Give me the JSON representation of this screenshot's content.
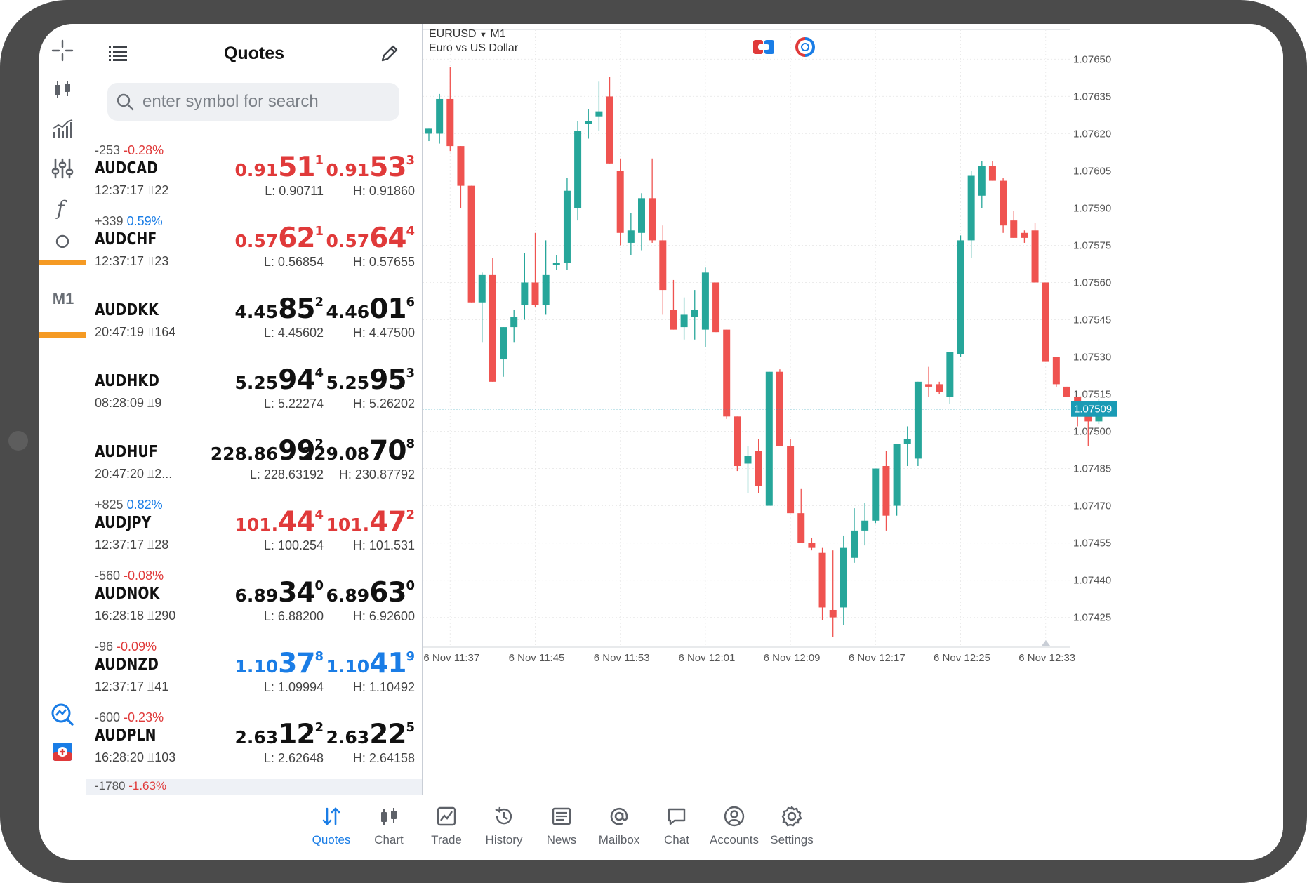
{
  "toolbar": {
    "items": [
      "crosshair-icon",
      "candles-icon",
      "indicators-icon",
      "settings-sliders-icon",
      "function-icon",
      "objects-icon"
    ],
    "timeframe": "M1",
    "bottom_items": [
      "trade-signals-icon",
      "one-click-trade-icon"
    ]
  },
  "quotes": {
    "title": "Quotes",
    "search_placeholder": "enter symbol for search",
    "rows": [
      {
        "change": "-253",
        "pct": "-0.28%",
        "pct_dir": "neg",
        "symbol": "AUDCAD",
        "time": "12:37:17",
        "spread": "22",
        "color": "red",
        "bid": {
          "small": "0.91",
          "big": "51",
          "sup": "1"
        },
        "ask": {
          "small": "0.91",
          "big": "53",
          "sup": "3"
        },
        "low": "L: 0.90711",
        "high": "H: 0.91860"
      },
      {
        "change": "+339",
        "pct": "0.59%",
        "pct_dir": "pos",
        "symbol": "AUDCHF",
        "time": "12:37:17",
        "spread": "23",
        "color": "red",
        "bid": {
          "small": "0.57",
          "big": "62",
          "sup": "1"
        },
        "ask": {
          "small": "0.57",
          "big": "64",
          "sup": "4"
        },
        "low": "L: 0.56854",
        "high": "H: 0.57655"
      },
      {
        "change": "",
        "pct": "",
        "pct_dir": "",
        "symbol": "AUDDKK",
        "time": "20:47:19",
        "spread": "164",
        "color": "black",
        "bid": {
          "small": "4.45",
          "big": "85",
          "sup": "2"
        },
        "ask": {
          "small": "4.46",
          "big": "01",
          "sup": "6"
        },
        "low": "L: 4.45602",
        "high": "H: 4.47500"
      },
      {
        "change": "",
        "pct": "",
        "pct_dir": "",
        "symbol": "AUDHKD",
        "time": "08:28:09",
        "spread": "9",
        "color": "black",
        "bid": {
          "small": "5.25",
          "big": "94",
          "sup": "4"
        },
        "ask": {
          "small": "5.25",
          "big": "95",
          "sup": "3"
        },
        "low": "L: 5.22274",
        "high": "H: 5.26202"
      },
      {
        "change": "",
        "pct": "",
        "pct_dir": "",
        "symbol": "AUDHUF",
        "time": "20:47:20",
        "spread": "2...",
        "color": "black",
        "bid": {
          "small": "228.86",
          "big": "99",
          "sup": "2"
        },
        "ask": {
          "small": "229.08",
          "big": "70",
          "sup": "8"
        },
        "low": "L: 228.63192",
        "high": "H: 230.87792"
      },
      {
        "change": "+825",
        "pct": "0.82%",
        "pct_dir": "pos",
        "symbol": "AUDJPY",
        "time": "12:37:17",
        "spread": "28",
        "color": "red",
        "bid": {
          "small": "101.",
          "big": "44",
          "sup": "4"
        },
        "ask": {
          "small": "101.",
          "big": "47",
          "sup": "2"
        },
        "low": "L: 100.254",
        "high": "H: 101.531"
      },
      {
        "change": "-560",
        "pct": "-0.08%",
        "pct_dir": "neg",
        "symbol": "AUDNOK",
        "time": "16:28:18",
        "spread": "290",
        "color": "black",
        "bid": {
          "small": "6.89",
          "big": "34",
          "sup": "0"
        },
        "ask": {
          "small": "6.89",
          "big": "63",
          "sup": "0"
        },
        "low": "L: 6.88200",
        "high": "H: 6.92600"
      },
      {
        "change": "-96",
        "pct": "-0.09%",
        "pct_dir": "neg",
        "symbol": "AUDNZD",
        "time": "12:37:17",
        "spread": "41",
        "color": "blue",
        "bid": {
          "small": "1.10",
          "big": "37",
          "sup": "8"
        },
        "ask": {
          "small": "1.10",
          "big": "41",
          "sup": "9"
        },
        "low": "L: 1.09994",
        "high": "H: 1.10492"
      },
      {
        "change": "-600",
        "pct": "-0.23%",
        "pct_dir": "neg",
        "symbol": "AUDPLN",
        "time": "16:28:20",
        "spread": "103",
        "color": "black",
        "bid": {
          "small": "2.63",
          "big": "12",
          "sup": "2"
        },
        "ask": {
          "small": "2.63",
          "big": "22",
          "sup": "5"
        },
        "low": "L: 2.62648",
        "high": "H: 2.64158"
      }
    ],
    "partial_row": {
      "change": "-1780",
      "pct": "-1.63%"
    }
  },
  "chart": {
    "symbol": "EURUSD",
    "timeframe": "M1",
    "description": "Euro vs US Dollar",
    "current_price": "1.07509",
    "colors": {
      "bull": "#26a69a",
      "bear": "#ef5350",
      "grid": "#ebebeb",
      "price_line": "#1a9bb5"
    }
  },
  "chart_data": {
    "type": "candlestick",
    "ylim": [
      1.07413,
      1.07662
    ],
    "y_ticks": [
      "1.07650",
      "1.07635",
      "1.07620",
      "1.07605",
      "1.07590",
      "1.07575",
      "1.07560",
      "1.07545",
      "1.07530",
      "1.07515",
      "1.07500",
      "1.07485",
      "1.07470",
      "1.07455",
      "1.07440",
      "1.07425"
    ],
    "x_ticks": [
      "6 Nov 11:37",
      "6 Nov 11:45",
      "6 Nov 11:53",
      "6 Nov 12:01",
      "6 Nov 12:09",
      "6 Nov 12:17",
      "6 Nov 12:25",
      "6 Nov 12:33"
    ],
    "candles": [
      [
        1.0762,
        1.07622,
        1.07617,
        1.07622
      ],
      [
        1.0762,
        1.07636,
        1.07616,
        1.07634
      ],
      [
        1.07634,
        1.07647,
        1.07613,
        1.07615
      ],
      [
        1.07615,
        1.07615,
        1.0759,
        1.07599
      ],
      [
        1.07599,
        1.07599,
        1.07552,
        1.07552
      ],
      [
        1.07552,
        1.07564,
        1.07536,
        1.07563
      ],
      [
        1.07563,
        1.0757,
        1.0752,
        1.0752
      ],
      [
        1.07529,
        1.07542,
        1.07522,
        1.07542
      ],
      [
        1.07542,
        1.07549,
        1.07536,
        1.07546
      ],
      [
        1.07551,
        1.07572,
        1.07545,
        1.0756
      ],
      [
        1.0756,
        1.0758,
        1.0755,
        1.07551
      ],
      [
        1.07551,
        1.07577,
        1.07547,
        1.07563
      ],
      [
        1.07567,
        1.07571,
        1.07565,
        1.07568
      ],
      [
        1.07568,
        1.07602,
        1.07565,
        1.07597
      ],
      [
        1.0759,
        1.07625,
        1.07585,
        1.07621
      ],
      [
        1.07624,
        1.0763,
        1.07618,
        1.07625
      ],
      [
        1.07627,
        1.07641,
        1.07621,
        1.07629
      ],
      [
        1.07635,
        1.07643,
        1.07608,
        1.07608
      ],
      [
        1.07605,
        1.0761,
        1.07575,
        1.0758
      ],
      [
        1.07576,
        1.07588,
        1.07571,
        1.07581
      ],
      [
        1.0758,
        1.07596,
        1.07573,
        1.07594
      ],
      [
        1.07594,
        1.0761,
        1.07576,
        1.07577
      ],
      [
        1.07577,
        1.07583,
        1.07547,
        1.07557
      ],
      [
        1.07549,
        1.07561,
        1.07541,
        1.07541
      ],
      [
        1.07542,
        1.07554,
        1.07537,
        1.07547
      ],
      [
        1.07546,
        1.07557,
        1.07537,
        1.07549
      ],
      [
        1.07541,
        1.07566,
        1.07534,
        1.07564
      ],
      [
        1.0756,
        1.0756,
        1.0754,
        1.0754
      ],
      [
        1.07541,
        1.07541,
        1.07505,
        1.07506
      ],
      [
        1.07506,
        1.07506,
        1.07484,
        1.07486
      ],
      [
        1.07487,
        1.07494,
        1.07475,
        1.0749
      ],
      [
        1.07492,
        1.07497,
        1.07475,
        1.07478
      ],
      [
        1.0747,
        1.07524,
        1.0747,
        1.07524
      ],
      [
        1.07524,
        1.07525,
        1.07494,
        1.07494
      ],
      [
        1.07494,
        1.07497,
        1.07467,
        1.07467
      ],
      [
        1.07467,
        1.07477,
        1.07457,
        1.07455
      ],
      [
        1.07455,
        1.07457,
        1.07452,
        1.07453
      ],
      [
        1.07451,
        1.07453,
        1.07424,
        1.07429
      ],
      [
        1.07428,
        1.07452,
        1.07417,
        1.07425
      ],
      [
        1.07429,
        1.07458,
        1.07422,
        1.07453
      ],
      [
        1.07449,
        1.07469,
        1.07447,
        1.0746
      ],
      [
        1.0746,
        1.07471,
        1.07454,
        1.07464
      ],
      [
        1.07464,
        1.07485,
        1.07463,
        1.07485
      ],
      [
        1.07486,
        1.07492,
        1.0746,
        1.07466
      ],
      [
        1.0747,
        1.07495,
        1.07466,
        1.07495
      ],
      [
        1.07495,
        1.07502,
        1.07486,
        1.07497
      ],
      [
        1.07489,
        1.0752,
        1.07486,
        1.0752
      ],
      [
        1.07519,
        1.07526,
        1.07514,
        1.07518
      ],
      [
        1.07519,
        1.0752,
        1.07515,
        1.07516
      ],
      [
        1.07514,
        1.07532,
        1.07511,
        1.07532
      ],
      [
        1.07531,
        1.07579,
        1.0753,
        1.07577
      ],
      [
        1.07577,
        1.07605,
        1.0757,
        1.07603
      ],
      [
        1.07595,
        1.07609,
        1.0759,
        1.07607
      ],
      [
        1.07607,
        1.07609,
        1.07601,
        1.07601
      ],
      [
        1.07601,
        1.07602,
        1.0758,
        1.07583
      ],
      [
        1.07585,
        1.07589,
        1.07578,
        1.07578
      ],
      [
        1.0758,
        1.07581,
        1.07576,
        1.07578
      ],
      [
        1.07581,
        1.07584,
        1.0756,
        1.0756
      ],
      [
        1.0756,
        1.0756,
        1.07528,
        1.07528
      ],
      [
        1.0753,
        1.0753,
        1.07518,
        1.07519
      ],
      [
        1.07518,
        1.07518,
        1.07514,
        1.07514
      ],
      [
        1.07514,
        1.07514,
        1.07502,
        1.07508
      ],
      [
        1.07508,
        1.07508,
        1.07494,
        1.07504
      ],
      [
        1.07504,
        1.07513,
        1.07503,
        1.07509
      ]
    ]
  },
  "nav": {
    "items": [
      {
        "label": "Quotes",
        "icon": "quotes-icon",
        "active": true
      },
      {
        "label": "Chart",
        "icon": "chart-icon",
        "active": false
      },
      {
        "label": "Trade",
        "icon": "trade-icon",
        "active": false
      },
      {
        "label": "History",
        "icon": "history-icon",
        "active": false
      },
      {
        "label": "News",
        "icon": "news-icon",
        "active": false
      },
      {
        "label": "Mailbox",
        "icon": "mailbox-icon",
        "active": false
      },
      {
        "label": "Chat",
        "icon": "chat-icon",
        "active": false
      },
      {
        "label": "Accounts",
        "icon": "accounts-icon",
        "active": false
      },
      {
        "label": "Settings",
        "icon": "settings-icon",
        "active": false
      }
    ]
  }
}
